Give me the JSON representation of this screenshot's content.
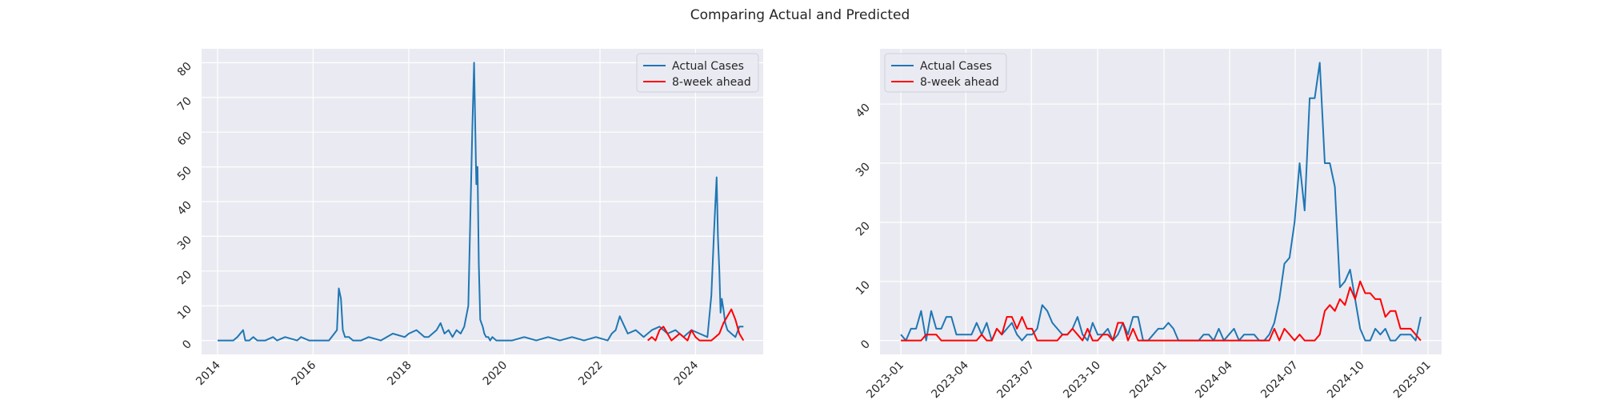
{
  "figure": {
    "suptitle": "Comparing Actual and Predicted",
    "colors": {
      "actual": "#1f77b4",
      "predicted": "#ff0000",
      "axes_bg": "#eaeaf2",
      "grid": "#ffffff"
    }
  },
  "chart_data": [
    {
      "type": "line",
      "x_type": "date",
      "xlim": [
        "2013-09-01",
        "2025-06-01"
      ],
      "ylim": [
        -4,
        84
      ],
      "xticks": [
        "2014-01-01",
        "2016-01-01",
        "2018-01-01",
        "2020-01-01",
        "2022-01-01",
        "2024-01-01"
      ],
      "xtick_labels": [
        "2014",
        "2016",
        "2018",
        "2020",
        "2022",
        "2024"
      ],
      "yticks": [
        0,
        10,
        20,
        30,
        40,
        50,
        60,
        70,
        80
      ],
      "grid": true,
      "legend": "upper-right",
      "series": [
        {
          "name": "Actual Cases",
          "color": "#1f77b4",
          "x": [
            "2014-01-01",
            "2014-05-01",
            "2014-06-01",
            "2014-07-15",
            "2014-08-01",
            "2014-09-01",
            "2014-10-01",
            "2014-11-01",
            "2015-01-01",
            "2015-03-01",
            "2015-04-01",
            "2015-06-01",
            "2015-09-01",
            "2015-10-01",
            "2015-12-01",
            "2016-02-01",
            "2016-05-01",
            "2016-07-01",
            "2016-07-15",
            "2016-08-01",
            "2016-08-15",
            "2016-09-01",
            "2016-10-01",
            "2016-11-01",
            "2017-01-01",
            "2017-03-01",
            "2017-06-01",
            "2017-09-01",
            "2017-12-01",
            "2018-01-01",
            "2018-03-01",
            "2018-05-01",
            "2018-06-01",
            "2018-08-01",
            "2018-09-01",
            "2018-10-01",
            "2018-11-01",
            "2018-12-01",
            "2019-01-01",
            "2019-02-01",
            "2019-03-01",
            "2019-04-01",
            "2019-05-01",
            "2019-05-15",
            "2019-06-01",
            "2019-06-10",
            "2019-06-20",
            "2019-07-01",
            "2019-07-10",
            "2019-07-20",
            "2019-08-01",
            "2019-08-15",
            "2019-09-01",
            "2019-09-15",
            "2019-10-01",
            "2019-11-01",
            "2020-01-01",
            "2020-03-01",
            "2020-06-01",
            "2020-09-01",
            "2020-12-01",
            "2021-03-01",
            "2021-06-01",
            "2021-09-01",
            "2021-12-01",
            "2022-03-01",
            "2022-04-01",
            "2022-05-01",
            "2022-06-01",
            "2022-08-01",
            "2022-10-01",
            "2022-12-01",
            "2023-02-01",
            "2023-04-01",
            "2023-06-01",
            "2023-08-01",
            "2023-10-01",
            "2023-12-01",
            "2024-02-01",
            "2024-04-01",
            "2024-05-01",
            "2024-05-20",
            "2024-06-01",
            "2024-06-10",
            "2024-06-20",
            "2024-07-01",
            "2024-07-10",
            "2024-07-20",
            "2024-08-01",
            "2024-08-15",
            "2024-09-01",
            "2024-10-01",
            "2024-11-01",
            "2024-12-01",
            "2025-01-01"
          ],
          "values": [
            0,
            0,
            1,
            3,
            0,
            0,
            1,
            0,
            0,
            1,
            0,
            1,
            0,
            1,
            0,
            0,
            0,
            3,
            15,
            12,
            3,
            1,
            1,
            0,
            0,
            1,
            0,
            2,
            1,
            2,
            3,
            1,
            1,
            3,
            5,
            2,
            3,
            1,
            3,
            2,
            4,
            10,
            60,
            80,
            45,
            50,
            22,
            6,
            5,
            4,
            2,
            1,
            1,
            0,
            1,
            0,
            0,
            0,
            1,
            0,
            1,
            0,
            1,
            0,
            1,
            0,
            2,
            3,
            7,
            2,
            3,
            1,
            3,
            4,
            2,
            3,
            1,
            3,
            2,
            1,
            13,
            30,
            40,
            47,
            30,
            20,
            8,
            12,
            9,
            5,
            3,
            2,
            1,
            4,
            4
          ]
        },
        {
          "name": "8-week ahead",
          "color": "#ff0000",
          "x": [
            "2023-01-01",
            "2023-02-01",
            "2023-03-01",
            "2023-04-01",
            "2023-05-01",
            "2023-06-01",
            "2023-07-01",
            "2023-08-01",
            "2023-09-01",
            "2023-10-01",
            "2023-11-01",
            "2023-12-01",
            "2024-01-01",
            "2024-02-01",
            "2024-03-01",
            "2024-04-01",
            "2024-05-01",
            "2024-06-01",
            "2024-07-01",
            "2024-08-01",
            "2024-09-01",
            "2024-10-01",
            "2024-11-01",
            "2024-12-01",
            "2025-01-01"
          ],
          "values": [
            0,
            1,
            0,
            3,
            4,
            2,
            0,
            1,
            2,
            1,
            0,
            3,
            1,
            0,
            0,
            0,
            0,
            1,
            2,
            5,
            7,
            9,
            6,
            2,
            0
          ]
        }
      ]
    },
    {
      "type": "line",
      "x_type": "date",
      "xlim": [
        "2022-12-03",
        "2025-01-20"
      ],
      "ylim": [
        -2.35,
        49.35
      ],
      "xticks": [
        "2023-01-01",
        "2023-04-01",
        "2023-07-01",
        "2023-10-01",
        "2024-01-01",
        "2024-04-01",
        "2024-07-01",
        "2024-10-01",
        "2025-01-01"
      ],
      "xtick_labels": [
        "2023-01",
        "2023-04",
        "2023-07",
        "2023-10",
        "2024-01",
        "2024-04",
        "2024-07",
        "2024-10",
        "2025-01"
      ],
      "yticks": [
        0,
        10,
        20,
        30,
        40
      ],
      "grid": true,
      "legend": "upper-left",
      "series": [
        {
          "name": "Actual Cases",
          "color": "#1f77b4",
          "x": [
            "2023-01-01",
            "2023-01-08",
            "2023-01-15",
            "2023-01-22",
            "2023-01-29",
            "2023-02-05",
            "2023-02-12",
            "2023-02-19",
            "2023-02-26",
            "2023-03-05",
            "2023-03-12",
            "2023-03-19",
            "2023-03-26",
            "2023-04-02",
            "2023-04-09",
            "2023-04-16",
            "2023-04-23",
            "2023-04-30",
            "2023-05-07",
            "2023-05-14",
            "2023-05-21",
            "2023-05-28",
            "2023-06-04",
            "2023-06-11",
            "2023-06-18",
            "2023-06-25",
            "2023-07-02",
            "2023-07-09",
            "2023-07-16",
            "2023-07-23",
            "2023-07-30",
            "2023-08-06",
            "2023-08-13",
            "2023-08-20",
            "2023-08-27",
            "2023-09-03",
            "2023-09-10",
            "2023-09-17",
            "2023-09-24",
            "2023-10-01",
            "2023-10-08",
            "2023-10-15",
            "2023-10-22",
            "2023-10-29",
            "2023-11-05",
            "2023-11-12",
            "2023-11-19",
            "2023-11-26",
            "2023-12-03",
            "2023-12-10",
            "2023-12-17",
            "2023-12-24",
            "2023-12-31",
            "2024-01-07",
            "2024-01-14",
            "2024-01-21",
            "2024-01-28",
            "2024-02-04",
            "2024-02-11",
            "2024-02-18",
            "2024-02-25",
            "2024-03-03",
            "2024-03-10",
            "2024-03-17",
            "2024-03-24",
            "2024-03-31",
            "2024-04-07",
            "2024-04-14",
            "2024-04-21",
            "2024-04-28",
            "2024-05-05",
            "2024-05-12",
            "2024-05-19",
            "2024-05-26",
            "2024-06-02",
            "2024-06-09",
            "2024-06-16",
            "2024-06-23",
            "2024-06-30",
            "2024-07-07",
            "2024-07-14",
            "2024-07-21",
            "2024-07-28",
            "2024-08-04",
            "2024-08-11",
            "2024-08-18",
            "2024-08-25",
            "2024-09-01",
            "2024-09-08",
            "2024-09-15",
            "2024-09-22",
            "2024-09-29",
            "2024-10-06",
            "2024-10-13",
            "2024-10-20",
            "2024-10-27",
            "2024-11-03",
            "2024-11-10",
            "2024-11-17",
            "2024-11-24",
            "2024-12-01",
            "2024-12-08",
            "2024-12-15",
            "2024-12-22"
          ],
          "values": [
            1,
            0,
            2,
            2,
            5,
            0,
            5,
            2,
            2,
            4,
            4,
            1,
            1,
            1,
            1,
            3,
            1,
            3,
            0,
            2,
            1,
            2,
            3,
            1,
            0,
            1,
            1,
            2,
            6,
            5,
            3,
            2,
            1,
            1,
            2,
            4,
            1,
            0,
            3,
            1,
            1,
            2,
            0,
            1,
            3,
            1,
            4,
            4,
            0,
            0,
            1,
            2,
            2,
            3,
            2,
            0,
            0,
            0,
            0,
            0,
            1,
            1,
            0,
            2,
            0,
            1,
            2,
            0,
            1,
            1,
            1,
            0,
            0,
            1,
            3,
            7,
            13,
            14,
            20,
            30,
            22,
            41,
            41,
            47,
            30,
            30,
            26,
            9,
            10,
            12,
            7,
            2,
            0,
            0,
            2,
            1,
            2,
            0,
            0,
            1,
            1,
            1,
            0,
            4
          ]
        },
        {
          "name": "8-week ahead",
          "color": "#ff0000",
          "x": [
            "2023-01-01",
            "2023-01-08",
            "2023-01-15",
            "2023-01-22",
            "2023-01-29",
            "2023-02-05",
            "2023-02-12",
            "2023-02-19",
            "2023-02-26",
            "2023-03-05",
            "2023-03-12",
            "2023-03-19",
            "2023-03-26",
            "2023-04-02",
            "2023-04-09",
            "2023-04-16",
            "2023-04-23",
            "2023-04-30",
            "2023-05-07",
            "2023-05-14",
            "2023-05-21",
            "2023-05-28",
            "2023-06-04",
            "2023-06-11",
            "2023-06-18",
            "2023-06-25",
            "2023-07-02",
            "2023-07-09",
            "2023-07-16",
            "2023-07-23",
            "2023-07-30",
            "2023-08-06",
            "2023-08-13",
            "2023-08-20",
            "2023-08-27",
            "2023-09-03",
            "2023-09-10",
            "2023-09-17",
            "2023-09-24",
            "2023-10-01",
            "2023-10-08",
            "2023-10-15",
            "2023-10-22",
            "2023-10-29",
            "2023-11-05",
            "2023-11-12",
            "2023-11-19",
            "2023-11-26",
            "2023-12-03",
            "2023-12-10",
            "2023-12-17",
            "2023-12-24",
            "2023-12-31",
            "2024-01-07",
            "2024-01-14",
            "2024-01-21",
            "2024-01-28",
            "2024-02-04",
            "2024-02-11",
            "2024-02-18",
            "2024-02-25",
            "2024-03-03",
            "2024-03-10",
            "2024-03-17",
            "2024-03-24",
            "2024-03-31",
            "2024-04-07",
            "2024-04-14",
            "2024-04-21",
            "2024-04-28",
            "2024-05-05",
            "2024-05-12",
            "2024-05-19",
            "2024-05-26",
            "2024-06-02",
            "2024-06-09",
            "2024-06-16",
            "2024-06-23",
            "2024-06-30",
            "2024-07-07",
            "2024-07-14",
            "2024-07-21",
            "2024-07-28",
            "2024-08-04",
            "2024-08-11",
            "2024-08-18",
            "2024-08-25",
            "2024-09-01",
            "2024-09-08",
            "2024-09-15",
            "2024-09-22",
            "2024-09-29",
            "2024-10-06",
            "2024-10-13",
            "2024-10-20",
            "2024-10-27",
            "2024-11-03",
            "2024-11-10",
            "2024-11-17",
            "2024-11-24",
            "2024-12-01",
            "2024-12-08",
            "2024-12-15",
            "2024-12-22"
          ],
          "values": [
            0,
            0,
            0,
            0,
            0,
            1,
            1,
            1,
            0,
            0,
            0,
            0,
            0,
            0,
            0,
            0,
            1,
            0,
            0,
            2,
            1,
            4,
            4,
            2,
            4,
            2,
            2,
            0,
            0,
            0,
            0,
            0,
            1,
            1,
            2,
            1,
            0,
            2,
            0,
            0,
            1,
            1,
            0,
            3,
            3,
            0,
            2,
            0,
            0,
            0,
            0,
            0,
            0,
            0,
            0,
            0,
            0,
            0,
            0,
            0,
            0,
            0,
            0,
            0,
            0,
            0,
            0,
            0,
            0,
            0,
            0,
            0,
            0,
            0,
            2,
            0,
            2,
            1,
            0,
            1,
            0,
            0,
            0,
            1,
            5,
            6,
            5,
            7,
            6,
            9,
            7,
            10,
            8,
            8,
            7,
            7,
            4,
            5,
            5,
            2,
            2,
            2,
            1,
            0
          ]
        }
      ]
    }
  ]
}
